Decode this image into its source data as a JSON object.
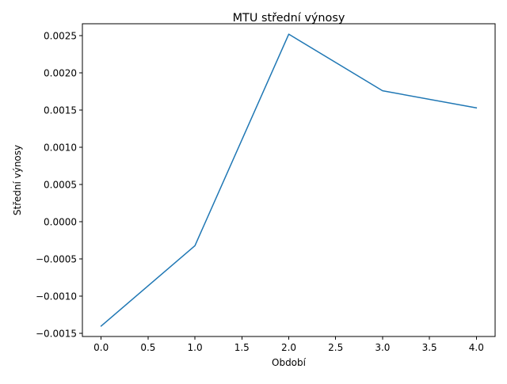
{
  "chart_data": {
    "type": "line",
    "title": "MTU střední výnosy",
    "xlabel": "Období",
    "ylabel": "Střední výnosy",
    "x": [
      0,
      1,
      2,
      3,
      4
    ],
    "series": [
      {
        "values": [
          -0.0014,
          -0.00032,
          0.00252,
          0.00176,
          0.00153
        ],
        "color": "#1f77b4"
      }
    ],
    "xlim": [
      -0.2,
      4.2
    ],
    "ylim": [
      -0.00154,
      0.00266
    ],
    "xticks": [
      0.0,
      0.5,
      1.0,
      1.5,
      2.0,
      2.5,
      3.0,
      3.5,
      4.0
    ],
    "xtick_labels": [
      "0.0",
      "0.5",
      "1.0",
      "1.5",
      "2.0",
      "2.5",
      "3.0",
      "3.5",
      "4.0"
    ],
    "yticks": [
      -0.0015,
      -0.001,
      -0.0005,
      0.0,
      0.0005,
      0.001,
      0.0015,
      0.002,
      0.0025
    ],
    "ytick_labels": [
      "−0.0015",
      "−0.0010",
      "−0.0005",
      "0.0000",
      "0.0005",
      "0.0010",
      "0.0015",
      "0.0020",
      "0.0025"
    ],
    "grid": false,
    "legend": "none"
  }
}
